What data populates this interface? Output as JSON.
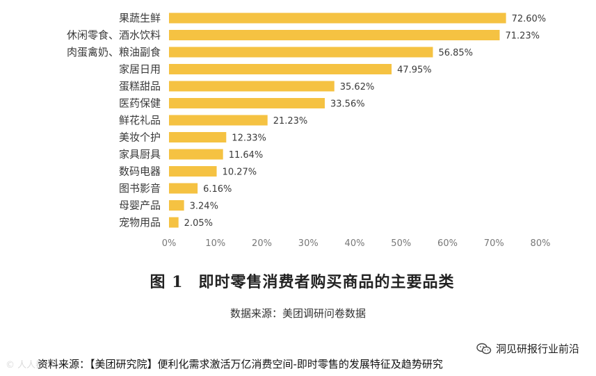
{
  "chart_data": {
    "type": "bar",
    "orientation": "horizontal",
    "categories": [
      "果蔬生鲜",
      "休闲零食、酒水饮料",
      "肉蛋禽奶、粮油副食",
      "家居日用",
      "蛋糕甜品",
      "医药保健",
      "鲜花礼品",
      "美妆个护",
      "家具厨具",
      "数码电器",
      "图书影音",
      "母婴产品",
      "宠物用品"
    ],
    "values": [
      72.6,
      71.23,
      56.85,
      47.95,
      35.62,
      33.56,
      21.23,
      12.33,
      11.64,
      10.27,
      6.16,
      3.24,
      2.05
    ],
    "value_labels": [
      "72.60%",
      "71.23%",
      "56.85%",
      "47.95%",
      "35.62%",
      "33.56%",
      "21.23%",
      "12.33%",
      "11.64%",
      "10.27%",
      "6.16%",
      "3.24%",
      "2.05%"
    ],
    "xlim": [
      0,
      80
    ],
    "x_ticks": [
      "0%",
      "10%",
      "20%",
      "30%",
      "40%",
      "50%",
      "60%",
      "70%",
      "80%"
    ],
    "bar_color": "#F5C242",
    "grid": false,
    "legend": "none"
  },
  "figure": {
    "label": "图 1",
    "title": "即时零售消费者购买商品的主要品类",
    "source": "数据来源：美团调研问卷数据"
  },
  "footer": {
    "source": "资料来源：【美团研究院】便利化需求激活万亿消费空间-即时零售的发展特征及趋势研究",
    "wechat_account": "洞见研报行业前沿",
    "wechat_icon": "wechat-icon"
  }
}
